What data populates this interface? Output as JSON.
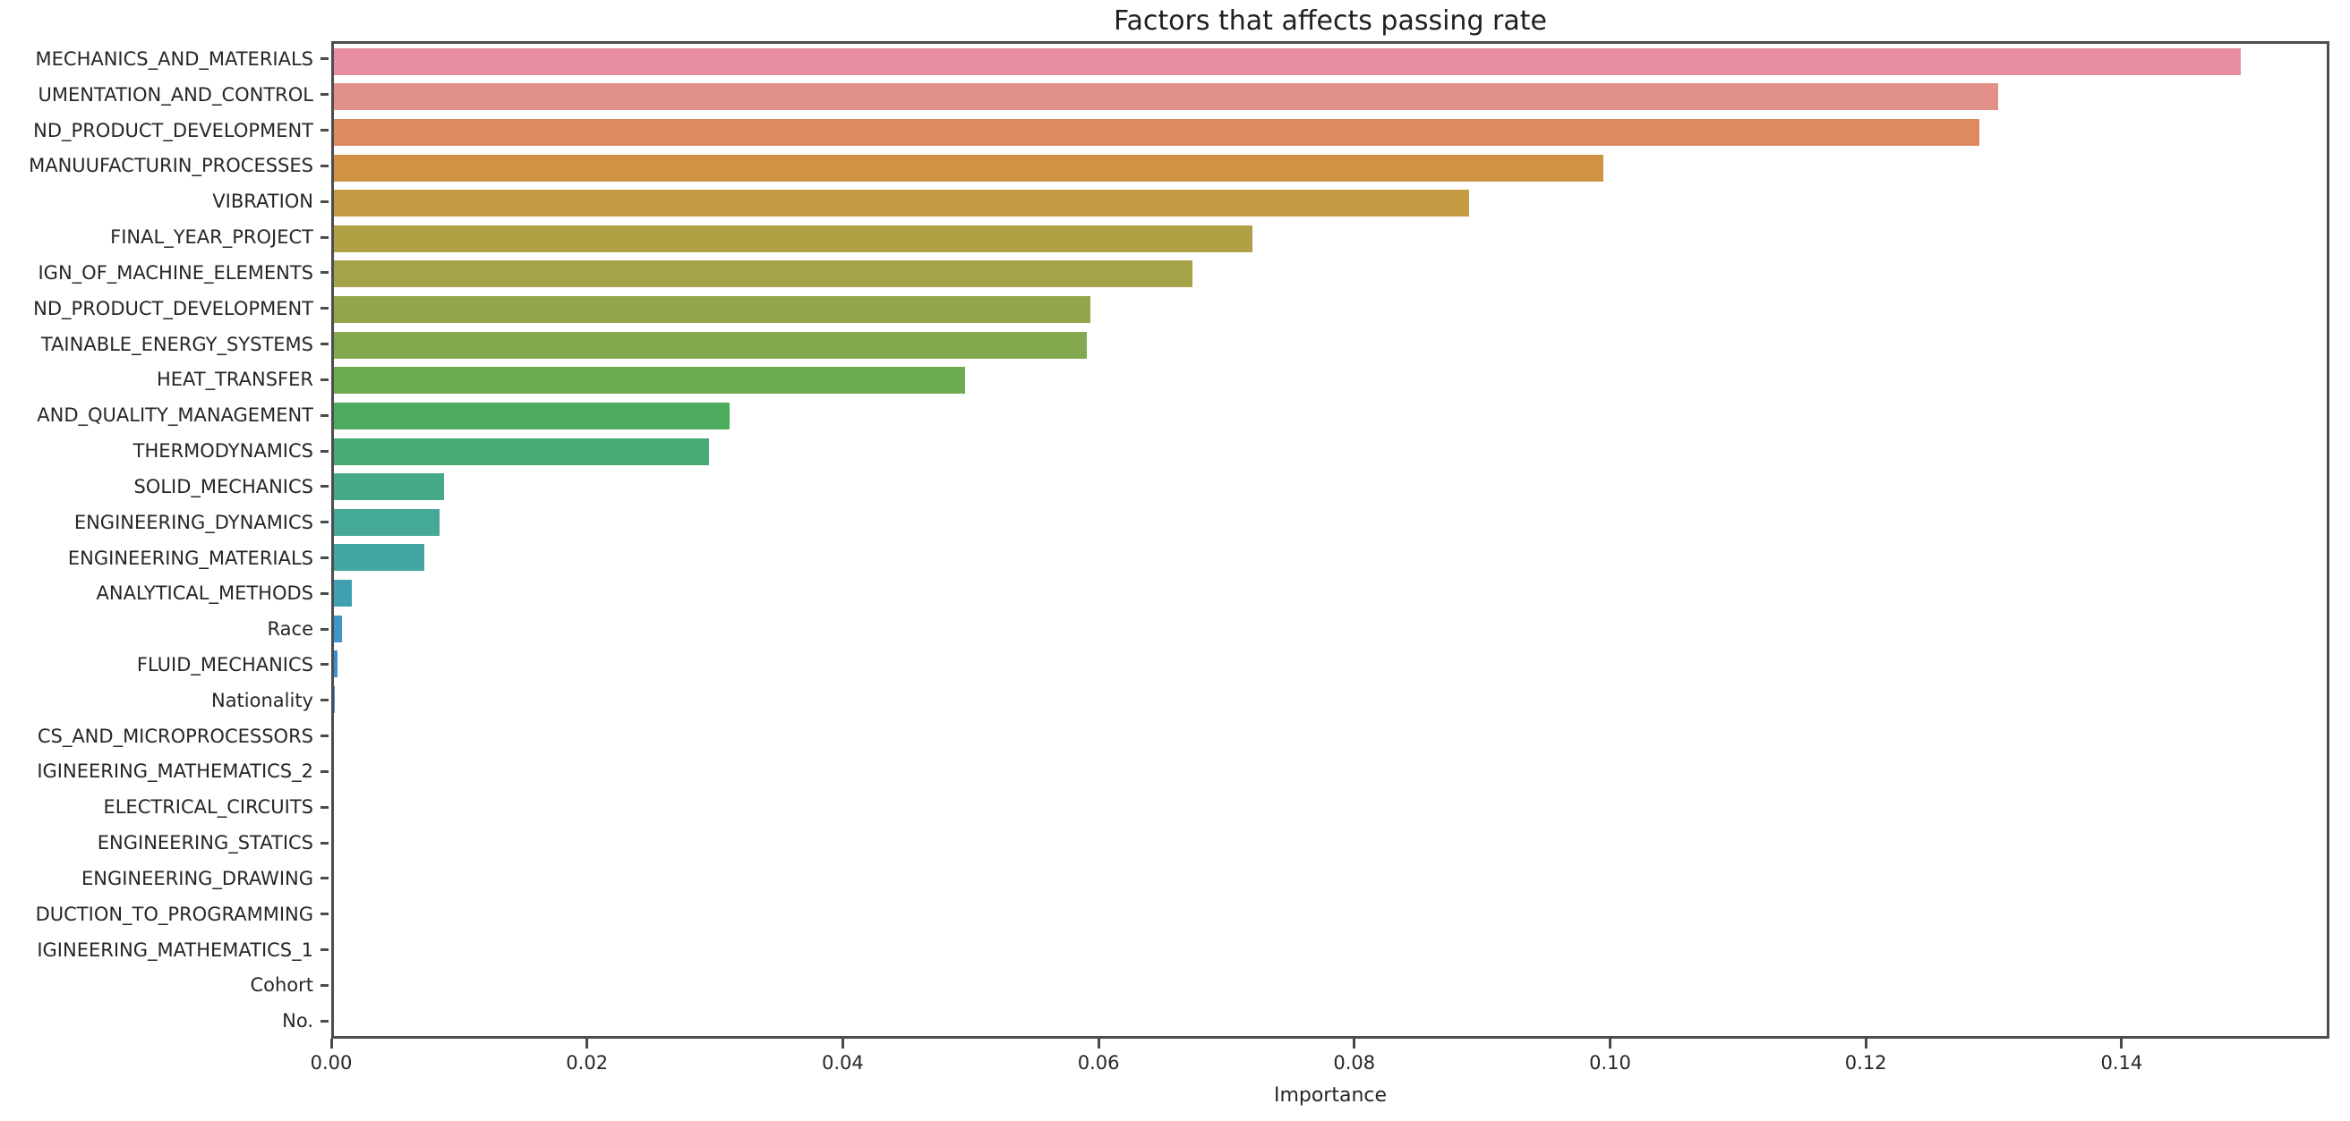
{
  "chart_data": {
    "type": "bar",
    "orientation": "horizontal",
    "title": "Factors that affects passing rate",
    "xlabel": "Importance",
    "ylabel": "",
    "xlim": [
      0,
      0.15625
    ],
    "xticks": [
      0.0,
      0.02,
      0.04,
      0.06,
      0.08,
      0.1,
      0.12,
      0.14
    ],
    "xtick_labels": [
      "0.00",
      "0.02",
      "0.04",
      "0.06",
      "0.08",
      "0.10",
      "0.12",
      "0.14"
    ],
    "grid": false,
    "legend": null,
    "categories": [
      "MECHANICS_AND_MATERIALS",
      "UMENTATION_AND_CONTROL",
      "ND_PRODUCT_DEVELOPMENT",
      "MANUUFACTURIN_PROCESSES",
      "VIBRATION",
      "FINAL_YEAR_PROJECT",
      "IGN_OF_MACHINE_ELEMENTS",
      "ND_PRODUCT_DEVELOPMENT",
      "TAINABLE_ENERGY_SYSTEMS",
      "HEAT_TRANSFER",
      "AND_QUALITY_MANAGEMENT",
      "THERMODYNAMICS",
      "SOLID_MECHANICS",
      "ENGINEERING_DYNAMICS",
      "ENGINEERING_MATERIALS",
      "ANALYTICAL_METHODS",
      "Race",
      "FLUID_MECHANICS",
      "Nationality",
      "CS_AND_MICROPROCESSORS",
      "IGINEERING_MATHEMATICS_2",
      "ELECTRICAL_CIRCUITS",
      "ENGINEERING_STATICS",
      "ENGINEERING_DRAWING",
      "DUCTION_TO_PROGRAMMING",
      "IGINEERING_MATHEMATICS_1",
      "Cohort",
      "No."
    ],
    "values": [
      0.1495,
      0.1305,
      0.129,
      0.0995,
      0.089,
      0.072,
      0.0673,
      0.0593,
      0.059,
      0.0495,
      0.031,
      0.0294,
      0.0086,
      0.0083,
      0.0071,
      0.0014,
      0.0006,
      0.0003,
      0.0001,
      0,
      0,
      0,
      0,
      0,
      0,
      0,
      0,
      0
    ],
    "bar_colors": [
      "#e78da3",
      "#e29189",
      "#dc8b5e",
      "#d09346",
      "#c29b43",
      "#b2a045",
      "#a4a347",
      "#93a649",
      "#82a94d",
      "#6dab51",
      "#4dac5d",
      "#48ab75",
      "#45aa85",
      "#44a996",
      "#43a6a5",
      "#40a0b3",
      "#3e98c5",
      "#3c90d2",
      "#5a85dd",
      "#8c78e0",
      "#b16ade",
      "#cd62cf",
      "#dc5fbb",
      "#e360a5",
      "#e5688f",
      "#e67a84",
      "#e78a86",
      "#e78d9c"
    ],
    "colors": {
      "background": "#ffffff",
      "spine": "#4d4d50",
      "tick": "#4a4a4a",
      "text": "#262626",
      "title_text": "#1f1f1f"
    }
  }
}
